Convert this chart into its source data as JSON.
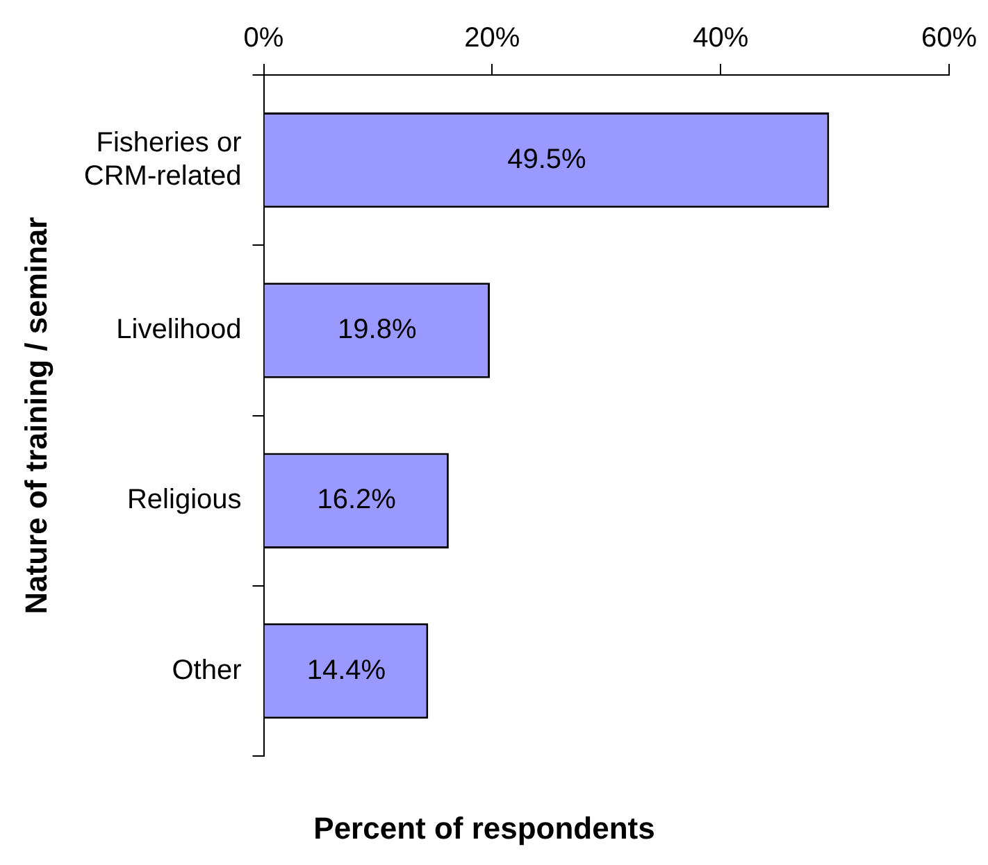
{
  "chart_data": {
    "type": "bar",
    "orientation": "horizontal",
    "xlabel": "Percent of respondents",
    "ylabel": "Nature of training / seminar",
    "categories": [
      "Fisheries or CRM-related",
      "Livelihood",
      "Religious",
      "Other"
    ],
    "values": [
      49.5,
      19.8,
      16.2,
      14.4
    ],
    "value_labels": [
      "49.5%",
      "19.8%",
      "16.2%",
      "14.4%"
    ],
    "color": "#9999ff",
    "xlim": [
      0,
      60
    ],
    "xticks": [
      {
        "value": 0,
        "label": "0%"
      },
      {
        "value": 20,
        "label": "20%"
      },
      {
        "value": 40,
        "label": "40%"
      },
      {
        "value": 60,
        "label": "60%"
      }
    ],
    "grid": false,
    "legend": false
  }
}
